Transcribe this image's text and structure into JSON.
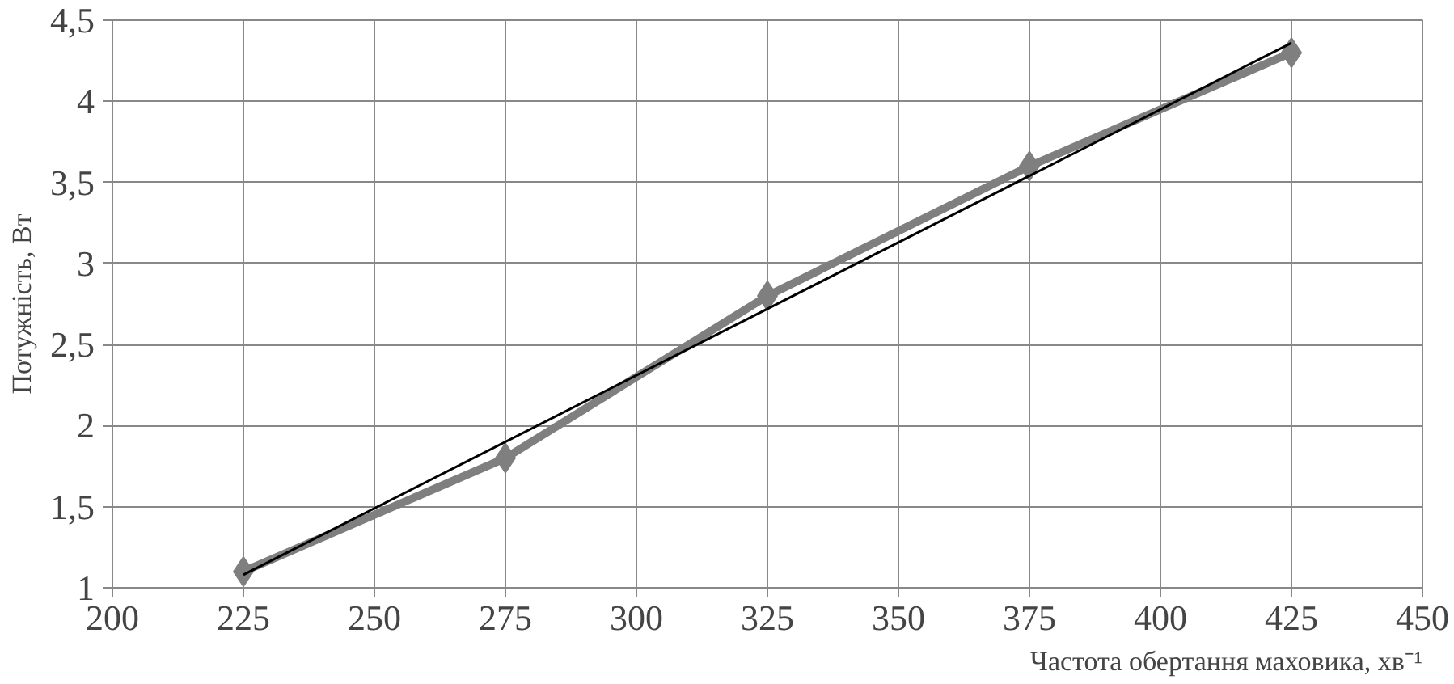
{
  "chart_data": {
    "type": "line",
    "xlabel": "Частота обертання маховика, хв⁻¹",
    "ylabel": "Потужність, Вт",
    "xlim": [
      200,
      450
    ],
    "xticks": [
      200,
      225,
      250,
      275,
      300,
      325,
      350,
      375,
      400,
      425,
      450
    ],
    "ylim": [
      1,
      4.5
    ],
    "yticks": [
      1,
      {
        "value": 1.5,
        "label": "1,5"
      },
      2,
      {
        "value": 2.5,
        "label": "2,5"
      },
      3,
      {
        "value": 3.5,
        "label": "3,5"
      },
      4,
      {
        "value": 4.5,
        "label": "4,5"
      }
    ],
    "grid": true,
    "marker": "diamond",
    "line_style": "solid",
    "series": [
      {
        "color": "#7f7f7f",
        "x": [
          225,
          275,
          325,
          375,
          425
        ],
        "values": [
          1.1,
          1.8,
          2.8,
          3.6,
          4.3
        ]
      },
      {
        "color": "#000000",
        "x": [
          225,
          425
        ],
        "values": [
          1.08,
          4.36
        ],
        "marker": "none"
      }
    ]
  }
}
